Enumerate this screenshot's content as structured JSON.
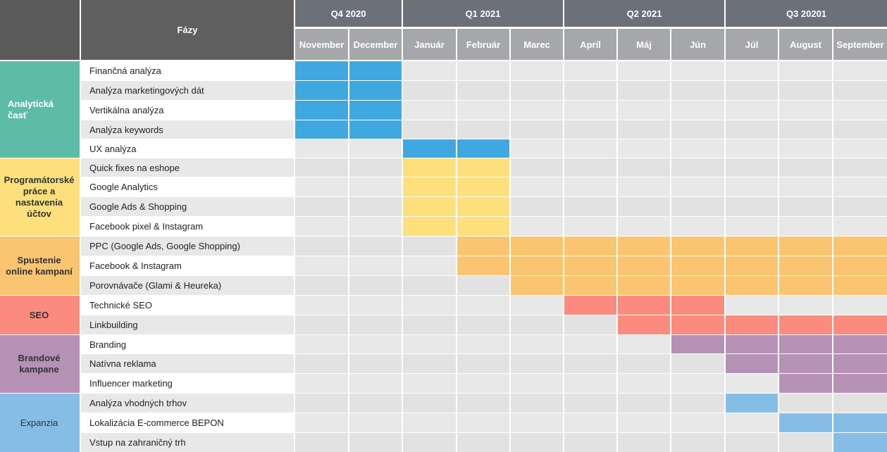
{
  "header": {
    "phases_label": "Fázy",
    "quarters": [
      {
        "label": "Q4 2020",
        "span": 2
      },
      {
        "label": "Q1 2021",
        "span": 3
      },
      {
        "label": "Q2 2021",
        "span": 3
      },
      {
        "label": "Q3 20201",
        "span": 3
      }
    ],
    "months": [
      "November",
      "December",
      "Január",
      "Február",
      "Marec",
      "Apríl",
      "Máj",
      "Jún",
      "Júl",
      "August",
      "September"
    ]
  },
  "colors": {
    "header_dark": "#6b7079",
    "month_bg": "#a6a7ab",
    "cell_odd": "#e4e4e4",
    "cell_even": "#ececec",
    "blue": "#3fa8e0",
    "yellow": "#fde07c",
    "orange": "#fbc470",
    "red": "#fb8b7e",
    "purple": "#b592b5",
    "lightblue": "#86bde6"
  },
  "groups": [
    {
      "label": "Analytická časť",
      "color": "#5dbca8",
      "text_color": "#ffffff",
      "align": "left",
      "tasks": [
        {
          "label": "Finančná analýza",
          "bar": [
            0,
            1
          ],
          "color": "#3fa8e0"
        },
        {
          "label": "Analýza marketingových dát",
          "bar": [
            0,
            1
          ],
          "color": "#3fa8e0"
        },
        {
          "label": "Vertikálna analýza",
          "bar": [
            0,
            1
          ],
          "color": "#3fa8e0"
        },
        {
          "label": "Analýza keywords",
          "bar": [
            0,
            1
          ],
          "color": "#3fa8e0"
        },
        {
          "label": "UX analýza",
          "bar": [
            2,
            3
          ],
          "color": "#3fa8e0"
        }
      ]
    },
    {
      "label": "Programátorské práce a nastavenia účtov",
      "color": "#fde07c",
      "text_color": "#333333",
      "align": "center",
      "tasks": [
        {
          "label": "Quick fixes na eshope",
          "bar": [
            2,
            3
          ],
          "color": "#fde07c"
        },
        {
          "label": "Google Analytics",
          "bar": [
            2,
            3
          ],
          "color": "#fde07c"
        },
        {
          "label": "Google Ads & Shopping",
          "bar": [
            2,
            3
          ],
          "color": "#fde07c"
        },
        {
          "label": "Facebook pixel & Instagram",
          "bar": [
            2,
            3
          ],
          "color": "#fde07c"
        }
      ]
    },
    {
      "label": "Spustenie online kampaní",
      "color": "#fbc470",
      "text_color": "#333333",
      "align": "center",
      "tasks": [
        {
          "label": "PPC (Google Ads, Google Shopping)",
          "bar": [
            3,
            10
          ],
          "color": "#fbc470"
        },
        {
          "label": "Facebook & Instagram",
          "bar": [
            3,
            10
          ],
          "color": "#fbc470"
        },
        {
          "label": "Porovnávače (Glami & Heureka)",
          "bar": [
            4,
            10
          ],
          "color": "#fbc470"
        }
      ]
    },
    {
      "label": "SEO",
      "color": "#fb8b7e",
      "text_color": "#333333",
      "align": "center",
      "tasks": [
        {
          "label": "Technické SEO",
          "bar": [
            5,
            7
          ],
          "color": "#fb8b7e"
        },
        {
          "label": "Linkbuilding",
          "bar": [
            6,
            10
          ],
          "color": "#fb8b7e"
        }
      ]
    },
    {
      "label": "Brandové kampane",
      "color": "#b592b5",
      "text_color": "#333333",
      "align": "center",
      "tasks": [
        {
          "label": "Branding",
          "bar": [
            7,
            10
          ],
          "color": "#b592b5"
        },
        {
          "label": "Natívna reklama",
          "bar": [
            8,
            10
          ],
          "color": "#b592b5"
        },
        {
          "label": "Influencer  marketing",
          "bar": [
            9,
            10
          ],
          "color": "#b592b5"
        }
      ]
    },
    {
      "label": "Expanzia",
      "color": "#86bde6",
      "text_color": "#333333",
      "align": "center",
      "weight": "normal",
      "tasks": [
        {
          "label": "Analýza vhodných trhov",
          "bar": [
            8,
            8
          ],
          "color": "#86bde6"
        },
        {
          "label": "Lokalizácia E-commerce BEPON",
          "bar": [
            9,
            10
          ],
          "color": "#86bde6"
        },
        {
          "label": "Vstup na zahraničný trh",
          "bar": [
            10,
            10
          ],
          "color": "#86bde6"
        }
      ]
    }
  ]
}
